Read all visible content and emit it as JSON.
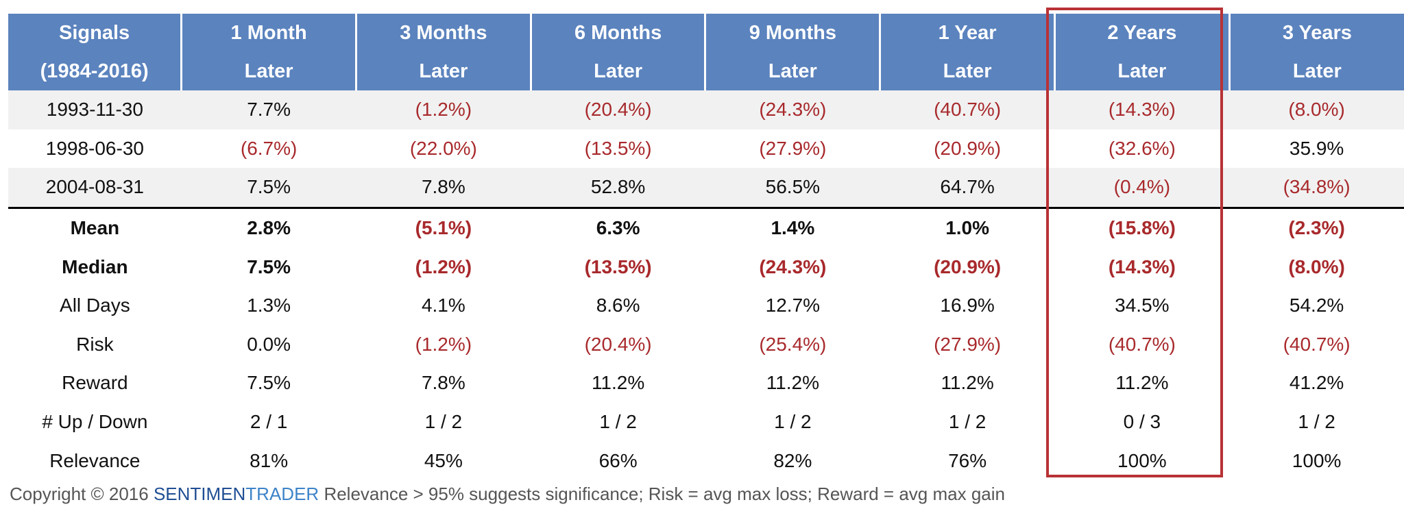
{
  "header": [
    [
      "Signals",
      "(1984-2016)"
    ],
    [
      "1 Month",
      "Later"
    ],
    [
      "3 Months",
      "Later"
    ],
    [
      "6 Months",
      "Later"
    ],
    [
      "9 Months",
      "Later"
    ],
    [
      "1 Year",
      "Later"
    ],
    [
      "2 Years",
      "Later"
    ],
    [
      "3 Years",
      "Later"
    ]
  ],
  "signals": [
    [
      "1993-11-30",
      "7.7%",
      "(1.2%)",
      "(20.4%)",
      "(24.3%)",
      "(40.7%)",
      "(14.3%)",
      "(8.0%)"
    ],
    [
      "1998-06-30",
      "(6.7%)",
      "(22.0%)",
      "(13.5%)",
      "(27.9%)",
      "(20.9%)",
      "(32.6%)",
      "35.9%"
    ],
    [
      "2004-08-31",
      "7.5%",
      "7.8%",
      "52.8%",
      "56.5%",
      "64.7%",
      "(0.4%)",
      "(34.8%)"
    ]
  ],
  "summary": [
    {
      "label": "Mean",
      "bold": true,
      "values": [
        "2.8%",
        "(5.1%)",
        "6.3%",
        "1.4%",
        "1.0%",
        "(15.8%)",
        "(2.3%)"
      ]
    },
    {
      "label": "Median",
      "bold": true,
      "values": [
        "7.5%",
        "(1.2%)",
        "(13.5%)",
        "(24.3%)",
        "(20.9%)",
        "(14.3%)",
        "(8.0%)"
      ]
    },
    {
      "label": "All Days",
      "bold": false,
      "values": [
        "1.3%",
        "4.1%",
        "8.6%",
        "12.7%",
        "16.9%",
        "34.5%",
        "54.2%"
      ]
    },
    {
      "label": "Risk",
      "bold": false,
      "values": [
        "0.0%",
        "(1.2%)",
        "(20.4%)",
        "(25.4%)",
        "(27.9%)",
        "(40.7%)",
        "(40.7%)"
      ]
    },
    {
      "label": "Reward",
      "bold": false,
      "values": [
        "7.5%",
        "7.8%",
        "11.2%",
        "11.2%",
        "11.2%",
        "11.2%",
        "41.2%"
      ]
    },
    {
      "label": "# Up / Down",
      "bold": false,
      "values": [
        "2 / 1",
        "1 / 2",
        "1 / 2",
        "1 / 2",
        "1 / 2",
        "0 / 3",
        "1 / 2"
      ]
    },
    {
      "label": "Relevance",
      "bold": false,
      "values": [
        "81%",
        "45%",
        "66%",
        "82%",
        "76%",
        "100%",
        "100%"
      ]
    }
  ],
  "highlighted_column": "2 Years",
  "footer": {
    "copyright": "Copyright © 2016",
    "brand_part1": "SENTIMEN",
    "brand_part2": "TRADER",
    "note": "Relevance > 95% suggests significance; Risk = avg max loss; Reward = avg max gain"
  },
  "colors": {
    "header_bg": "#5b83be",
    "negative": "#a8292c",
    "highlight_border": "#b83236",
    "stripe": "#f1f1f1",
    "brand_dark": "#1f4e93",
    "brand_light": "#3d83c8"
  }
}
